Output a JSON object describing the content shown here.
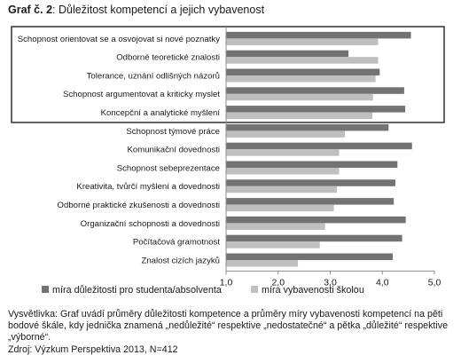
{
  "title": {
    "number": "Graf č. 2",
    "text": "Důležitost kompetencí a jejich vybavenost"
  },
  "chart_data": {
    "type": "bar",
    "orientation": "horizontal",
    "categories": [
      "Schopnost orientovat se a osvojovat si nové poznatky",
      "Odborné teoretické znalosti",
      "Tolerance, uznání odlišných názorů",
      "Schopnost argumentovat a kriticky myslet",
      "Koncepční a analytické myšlení",
      "Schopnost týmové práce",
      "Komunikační dovednosti",
      "Schopnost sebeprezentace",
      "Kreativita, tvůrčí myšlení a dovednosti",
      "Odborné praktické zkušenosti a dovednosti",
      "Organizační schopnosti a dovednosti",
      "Počítačová gramotnost",
      "Znalost cizích jazyků"
    ],
    "series": [
      {
        "name": "míra důležitosti pro studenta/absolventa",
        "color": "#737373",
        "values": [
          4.55,
          3.35,
          3.95,
          4.42,
          4.44,
          4.12,
          4.57,
          4.29,
          4.25,
          4.22,
          4.45,
          4.38,
          4.2
        ]
      },
      {
        "name": "míra vybavenosti školou",
        "color": "#bfbfbf",
        "values": [
          3.92,
          3.92,
          3.87,
          3.82,
          3.81,
          3.28,
          3.17,
          3.17,
          3.13,
          3.07,
          2.9,
          2.8,
          2.38
        ]
      }
    ],
    "xlim": [
      1.0,
      5.0
    ],
    "xticks": [
      "1,0",
      "2,0",
      "3,0",
      "4,0",
      "5,0"
    ],
    "xtick_values": [
      1,
      2,
      3,
      4,
      5
    ],
    "highlight_group": [
      0,
      1,
      2,
      3,
      4
    ],
    "legend_position": "bottom",
    "grid": false
  },
  "note": "Vysvětlivka: Graf uvádí průměry důležitosti kompetence a průměry míry vybavenosti kompetencí na pěti bodové škále, kdy jednička znamená „nedůležité“ respektive „nedostatečné“ a pětka „důležité“ respektive „výborné“.",
  "source": "Zdroj: Výzkum Perspektiva 2013, N=412"
}
